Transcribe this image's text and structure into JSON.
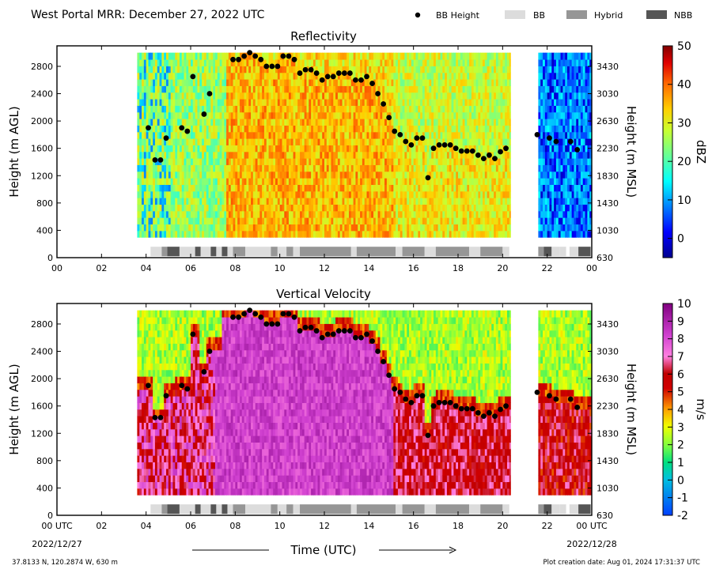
{
  "figure": {
    "title": "West Portal MRR:  December 27, 2022 UTC",
    "legend": [
      {
        "label": "BB Height",
        "marker": "dot",
        "color": "#000000"
      },
      {
        "label": "BB",
        "marker": "box",
        "color": "#dcdcdc"
      },
      {
        "label": "Hybrid",
        "marker": "box",
        "color": "#969696"
      },
      {
        "label": "NBB",
        "marker": "box",
        "color": "#555555"
      }
    ],
    "xlabel": "Time (UTC)",
    "location": "37.8133 N, 120.2874 W, 630 m",
    "creation": "Plot creation date: Aug 01, 2024 17:31:37 UTC",
    "date_left": "2022/12/27",
    "date_right": "2022/12/28"
  },
  "chart_data": [
    {
      "type": "heatmap",
      "title": "Reflectivity",
      "ylabel": "Height (m AGL)",
      "ylabel_right": "Height (m MSL)",
      "colorbar_label": "dBZ",
      "colorbar_ticks": [
        "50",
        "40",
        "30",
        "20",
        "10",
        "0"
      ],
      "colorbar_range": [
        -5,
        50
      ],
      "colormap": "jet",
      "xlim": [
        0,
        24
      ],
      "ylim": [
        0,
        3100
      ],
      "x_tick_labels": [
        "00",
        "02",
        "04",
        "06",
        "08",
        "10",
        "12",
        "14",
        "16",
        "18",
        "20",
        "22",
        "00"
      ],
      "y_ticks": [
        0,
        400,
        800,
        1200,
        1600,
        2000,
        2400,
        2800
      ],
      "y_ticks_right": [
        "630",
        "1030",
        "1430",
        "1830",
        "2230",
        "2630",
        "3030",
        "3430"
      ],
      "data_time_ranges": [
        [
          3.6,
          20.35
        ],
        [
          21.6,
          24.0
        ]
      ],
      "bb_height": [
        [
          4.1,
          1900
        ],
        [
          4.4,
          1430
        ],
        [
          4.65,
          1430
        ],
        [
          4.9,
          1750
        ],
        [
          5.6,
          1900
        ],
        [
          5.85,
          1850
        ],
        [
          6.1,
          2650
        ],
        [
          6.6,
          2100
        ],
        [
          6.85,
          2400
        ],
        [
          7.9,
          2900
        ],
        [
          8.15,
          2900
        ],
        [
          8.4,
          2950
        ],
        [
          8.65,
          3000
        ],
        [
          8.9,
          2950
        ],
        [
          9.15,
          2900
        ],
        [
          9.4,
          2800
        ],
        [
          9.65,
          2800
        ],
        [
          9.9,
          2800
        ],
        [
          10.15,
          2950
        ],
        [
          10.4,
          2950
        ],
        [
          10.65,
          2900
        ],
        [
          10.9,
          2700
        ],
        [
          11.15,
          2750
        ],
        [
          11.4,
          2750
        ],
        [
          11.65,
          2700
        ],
        [
          11.9,
          2600
        ],
        [
          12.15,
          2650
        ],
        [
          12.4,
          2650
        ],
        [
          12.65,
          2700
        ],
        [
          12.9,
          2700
        ],
        [
          13.15,
          2700
        ],
        [
          13.4,
          2600
        ],
        [
          13.65,
          2600
        ],
        [
          13.9,
          2650
        ],
        [
          14.15,
          2550
        ],
        [
          14.4,
          2400
        ],
        [
          14.65,
          2250
        ],
        [
          14.9,
          2050
        ],
        [
          15.15,
          1850
        ],
        [
          15.4,
          1800
        ],
        [
          15.65,
          1700
        ],
        [
          15.9,
          1650
        ],
        [
          16.15,
          1750
        ],
        [
          16.4,
          1750
        ],
        [
          16.65,
          1170
        ],
        [
          16.9,
          1600
        ],
        [
          17.15,
          1650
        ],
        [
          17.4,
          1650
        ],
        [
          17.65,
          1650
        ],
        [
          17.9,
          1600
        ],
        [
          18.15,
          1560
        ],
        [
          18.4,
          1560
        ],
        [
          18.65,
          1560
        ],
        [
          18.9,
          1500
        ],
        [
          19.15,
          1450
        ],
        [
          19.4,
          1500
        ],
        [
          19.65,
          1450
        ],
        [
          19.9,
          1550
        ],
        [
          20.15,
          1600
        ],
        [
          21.55,
          1800
        ],
        [
          22.1,
          1750
        ],
        [
          22.4,
          1700
        ],
        [
          23.05,
          1700
        ],
        [
          23.35,
          1580
        ]
      ],
      "bb_type_bar": [
        [
          4.2,
          4.7,
          "BB"
        ],
        [
          4.7,
          4.95,
          "Hybrid"
        ],
        [
          4.95,
          5.5,
          "NBB"
        ],
        [
          5.5,
          6.2,
          "BB"
        ],
        [
          6.2,
          6.45,
          "NBB"
        ],
        [
          6.45,
          6.9,
          "BB"
        ],
        [
          6.9,
          7.15,
          "NBB"
        ],
        [
          7.15,
          7.4,
          "BB"
        ],
        [
          7.4,
          7.65,
          "NBB"
        ],
        [
          7.65,
          7.9,
          "BB"
        ],
        [
          7.9,
          8.45,
          "Hybrid"
        ],
        [
          8.45,
          9.6,
          "BB"
        ],
        [
          9.6,
          9.9,
          "Hybrid"
        ],
        [
          9.9,
          10.3,
          "BB"
        ],
        [
          10.3,
          10.6,
          "Hybrid"
        ],
        [
          10.6,
          10.9,
          "BB"
        ],
        [
          10.9,
          13.2,
          "Hybrid"
        ],
        [
          13.2,
          13.45,
          "BB"
        ],
        [
          13.45,
          15.2,
          "Hybrid"
        ],
        [
          15.2,
          15.5,
          "BB"
        ],
        [
          15.5,
          16.5,
          "Hybrid"
        ],
        [
          16.5,
          17.0,
          "BB"
        ],
        [
          17.0,
          18.5,
          "Hybrid"
        ],
        [
          18.5,
          19.0,
          "BB"
        ],
        [
          19.0,
          20.0,
          "Hybrid"
        ],
        [
          20.0,
          20.3,
          "BB"
        ],
        [
          21.6,
          21.85,
          "Hybrid"
        ],
        [
          21.85,
          22.2,
          "NBB"
        ],
        [
          22.2,
          22.55,
          "BB"
        ],
        [
          22.55,
          22.85,
          "BB"
        ],
        [
          23.0,
          23.4,
          "BB"
        ],
        [
          23.4,
          23.95,
          "NBB"
        ]
      ]
    },
    {
      "type": "heatmap",
      "title": "Vertical Velocity",
      "ylabel": "Height (m AGL)",
      "ylabel_right": "Height (m MSL)",
      "colorbar_label": "m/s",
      "colorbar_ticks": [
        "10",
        "9",
        "8",
        "7",
        "6",
        "5",
        "4",
        "3",
        "2",
        "1",
        "0",
        "-1",
        "-2"
      ],
      "colorbar_range": [
        -2,
        10
      ],
      "colormap": "velocity",
      "xlim": [
        0,
        24
      ],
      "ylim": [
        0,
        3100
      ],
      "x_tick_labels": [
        "00 UTC",
        "02",
        "04",
        "06",
        "08",
        "10",
        "12",
        "14",
        "16",
        "18",
        "20",
        "22",
        "00 UTC"
      ],
      "y_ticks": [
        0,
        400,
        800,
        1200,
        1600,
        2000,
        2400,
        2800
      ],
      "y_ticks_right": [
        "630",
        "1030",
        "1430",
        "1830",
        "2230",
        "2630",
        "3030",
        "3430"
      ],
      "data_time_ranges": [
        [
          3.6,
          20.35
        ],
        [
          21.6,
          24.0
        ]
      ],
      "bb_height": [
        [
          4.1,
          1900
        ],
        [
          4.4,
          1430
        ],
        [
          4.65,
          1430
        ],
        [
          4.9,
          1750
        ],
        [
          5.6,
          1900
        ],
        [
          5.85,
          1850
        ],
        [
          6.1,
          2650
        ],
        [
          6.6,
          2100
        ],
        [
          6.85,
          2400
        ],
        [
          7.9,
          2900
        ],
        [
          8.15,
          2900
        ],
        [
          8.4,
          2950
        ],
        [
          8.65,
          3000
        ],
        [
          8.9,
          2950
        ],
        [
          9.15,
          2900
        ],
        [
          9.4,
          2800
        ],
        [
          9.65,
          2800
        ],
        [
          9.9,
          2800
        ],
        [
          10.15,
          2950
        ],
        [
          10.4,
          2950
        ],
        [
          10.65,
          2900
        ],
        [
          10.9,
          2700
        ],
        [
          11.15,
          2750
        ],
        [
          11.4,
          2750
        ],
        [
          11.65,
          2700
        ],
        [
          11.9,
          2600
        ],
        [
          12.15,
          2650
        ],
        [
          12.4,
          2650
        ],
        [
          12.65,
          2700
        ],
        [
          12.9,
          2700
        ],
        [
          13.15,
          2700
        ],
        [
          13.4,
          2600
        ],
        [
          13.65,
          2600
        ],
        [
          13.9,
          2650
        ],
        [
          14.15,
          2550
        ],
        [
          14.4,
          2400
        ],
        [
          14.65,
          2250
        ],
        [
          14.9,
          2050
        ],
        [
          15.15,
          1850
        ],
        [
          15.4,
          1800
        ],
        [
          15.65,
          1700
        ],
        [
          15.9,
          1650
        ],
        [
          16.15,
          1750
        ],
        [
          16.4,
          1750
        ],
        [
          16.65,
          1170
        ],
        [
          16.9,
          1600
        ],
        [
          17.15,
          1650
        ],
        [
          17.4,
          1650
        ],
        [
          17.65,
          1650
        ],
        [
          17.9,
          1600
        ],
        [
          18.15,
          1560
        ],
        [
          18.4,
          1560
        ],
        [
          18.65,
          1560
        ],
        [
          18.9,
          1500
        ],
        [
          19.15,
          1450
        ],
        [
          19.4,
          1500
        ],
        [
          19.65,
          1450
        ],
        [
          19.9,
          1550
        ],
        [
          20.15,
          1600
        ],
        [
          21.55,
          1800
        ],
        [
          22.1,
          1750
        ],
        [
          22.4,
          1700
        ],
        [
          23.05,
          1700
        ],
        [
          23.35,
          1580
        ]
      ],
      "bb_type_bar": [
        [
          4.2,
          4.7,
          "BB"
        ],
        [
          4.7,
          4.95,
          "Hybrid"
        ],
        [
          4.95,
          5.5,
          "NBB"
        ],
        [
          5.5,
          6.2,
          "BB"
        ],
        [
          6.2,
          6.45,
          "NBB"
        ],
        [
          6.45,
          6.9,
          "BB"
        ],
        [
          6.9,
          7.15,
          "NBB"
        ],
        [
          7.15,
          7.4,
          "BB"
        ],
        [
          7.4,
          7.65,
          "NBB"
        ],
        [
          7.65,
          7.9,
          "BB"
        ],
        [
          7.9,
          8.45,
          "Hybrid"
        ],
        [
          8.45,
          9.6,
          "BB"
        ],
        [
          9.6,
          9.9,
          "Hybrid"
        ],
        [
          9.9,
          10.3,
          "BB"
        ],
        [
          10.3,
          10.6,
          "Hybrid"
        ],
        [
          10.6,
          10.9,
          "BB"
        ],
        [
          10.9,
          13.2,
          "Hybrid"
        ],
        [
          13.2,
          13.45,
          "BB"
        ],
        [
          13.45,
          15.2,
          "Hybrid"
        ],
        [
          15.2,
          15.5,
          "BB"
        ],
        [
          15.5,
          16.5,
          "Hybrid"
        ],
        [
          16.5,
          17.0,
          "BB"
        ],
        [
          17.0,
          18.5,
          "Hybrid"
        ],
        [
          18.5,
          19.0,
          "BB"
        ],
        [
          19.0,
          20.0,
          "Hybrid"
        ],
        [
          20.0,
          20.3,
          "BB"
        ],
        [
          21.6,
          21.85,
          "Hybrid"
        ],
        [
          21.85,
          22.2,
          "NBB"
        ],
        [
          22.2,
          22.55,
          "BB"
        ],
        [
          22.55,
          22.85,
          "BB"
        ],
        [
          23.0,
          23.4,
          "BB"
        ],
        [
          23.4,
          23.95,
          "NBB"
        ]
      ]
    }
  ]
}
